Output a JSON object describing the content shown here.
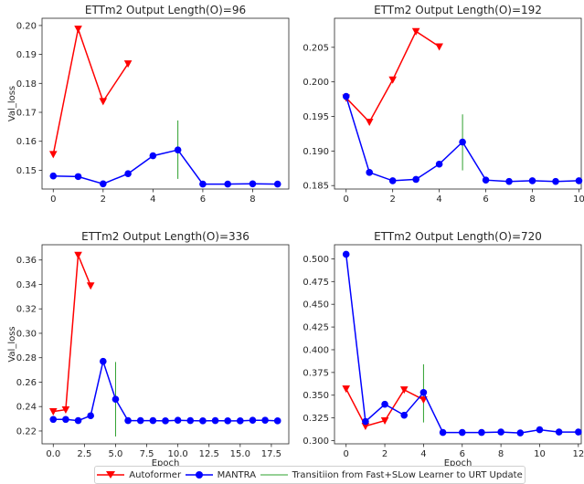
{
  "legend": {
    "autoformer": "Autoformer",
    "mantra": "MANTRA",
    "transition": "Transitiion from Fast+SLow Learner to URT Update"
  },
  "colors": {
    "autoformer": "#ff0000",
    "mantra": "#0000ff",
    "transition": "#2ca02c"
  },
  "chart_data": [
    {
      "type": "line",
      "title": "ETTm2 Output Length(O)=96",
      "xlabel": "",
      "ylabel": "Val_loss",
      "xlim": [
        -0.45,
        9.45
      ],
      "ylim": [
        0.1435,
        0.2025
      ],
      "xticks": [
        0,
        2,
        4,
        6,
        8
      ],
      "xtick_labels": [
        "0",
        "2",
        "4",
        "6",
        "8"
      ],
      "yticks": [
        0.15,
        0.16,
        0.17,
        0.18,
        0.19,
        0.2
      ],
      "ytick_labels": [
        "0.15",
        "0.16",
        "0.17",
        "0.18",
        "0.19",
        "0.20"
      ],
      "series": [
        {
          "name": "Autoformer",
          "marker": "triangle-down",
          "x": [
            0,
            1,
            2,
            3
          ],
          "y": [
            0.1555,
            0.1988,
            0.1738,
            0.1868
          ]
        },
        {
          "name": "MANTRA",
          "marker": "circle",
          "x": [
            0,
            1,
            2,
            3,
            4,
            5,
            6,
            7,
            8,
            9
          ],
          "y": [
            0.148,
            0.1478,
            0.1453,
            0.1488,
            0.155,
            0.157,
            0.1452,
            0.1452,
            0.1453,
            0.1452
          ]
        }
      ],
      "transition": {
        "x": 5,
        "y0": 0.147,
        "y1": 0.1672
      }
    },
    {
      "type": "line",
      "title": "ETTm2 Output Length(O)=192",
      "xlabel": "",
      "ylabel": "",
      "xlim": [
        -0.5,
        10.1
      ],
      "ylim": [
        0.1845,
        0.2092
      ],
      "xticks": [
        0,
        2,
        4,
        6,
        8,
        10
      ],
      "xtick_labels": [
        "0",
        "2",
        "4",
        "6",
        "8",
        "10"
      ],
      "yticks": [
        0.185,
        0.19,
        0.195,
        0.2,
        0.205
      ],
      "ytick_labels": [
        "0.185",
        "0.190",
        "0.195",
        "0.200",
        "0.205"
      ],
      "series": [
        {
          "name": "Autoformer",
          "marker": "triangle-down",
          "x": [
            0,
            1,
            2,
            3,
            4
          ],
          "y": [
            0.1977,
            0.1942,
            0.2003,
            0.2073,
            0.2051
          ]
        },
        {
          "name": "MANTRA",
          "marker": "circle",
          "x": [
            0,
            1,
            2,
            3,
            4,
            5,
            6,
            7,
            8,
            9,
            10
          ],
          "y": [
            0.1979,
            0.1869,
            0.1857,
            0.1859,
            0.1881,
            0.1913,
            0.1858,
            0.1856,
            0.1857,
            0.1856,
            0.1857
          ]
        }
      ],
      "transition": {
        "x": 5,
        "y0": 0.1872,
        "y1": 0.1953
      }
    },
    {
      "type": "line",
      "title": "ETTm2 Output Length(O)=336",
      "xlabel": "Epoch",
      "ylabel": "Val_loss",
      "xlim": [
        -0.9,
        18.9
      ],
      "ylim": [
        0.2095,
        0.3725
      ],
      "xticks": [
        0,
        2.5,
        5,
        7.5,
        10,
        12.5,
        15,
        17.5
      ],
      "xtick_labels": [
        "0.0",
        "2.5",
        "5.0",
        "7.5",
        "10.0",
        "12.5",
        "15.0",
        "17.5"
      ],
      "yticks": [
        0.22,
        0.24,
        0.26,
        0.28,
        0.3,
        0.32,
        0.34,
        0.36
      ],
      "ytick_labels": [
        "0.22",
        "0.24",
        "0.26",
        "0.28",
        "0.30",
        "0.32",
        "0.34",
        "0.36"
      ],
      "series": [
        {
          "name": "Autoformer",
          "marker": "triangle-down",
          "x": [
            0,
            1,
            2,
            3
          ],
          "y": [
            0.236,
            0.2375,
            0.364,
            0.339
          ]
        },
        {
          "name": "MANTRA",
          "marker": "circle",
          "x": [
            0,
            1,
            2,
            3,
            4,
            5,
            6,
            7,
            8,
            9,
            10,
            11,
            12,
            13,
            14,
            15,
            16,
            17,
            18
          ],
          "y": [
            0.2295,
            0.2295,
            0.2285,
            0.2325,
            0.277,
            0.246,
            0.2285,
            0.2285,
            0.2285,
            0.2283,
            0.2288,
            0.2285,
            0.2283,
            0.2285,
            0.2283,
            0.2283,
            0.2288,
            0.2288,
            0.2283
          ]
        }
      ],
      "transition": {
        "x": 5,
        "y0": 0.2155,
        "y1": 0.2765
      }
    },
    {
      "type": "line",
      "title": "ETTm2 Output Length(O)=720",
      "xlabel": "Epoch",
      "ylabel": "",
      "xlim": [
        -0.6,
        12.15
      ],
      "ylim": [
        0.2965,
        0.5155
      ],
      "xticks": [
        0,
        2,
        4,
        6,
        8,
        10,
        12
      ],
      "xtick_labels": [
        "0",
        "2",
        "4",
        "6",
        "8",
        "10",
        "12"
      ],
      "yticks": [
        0.3,
        0.325,
        0.35,
        0.375,
        0.4,
        0.425,
        0.45,
        0.475,
        0.5
      ],
      "ytick_labels": [
        "0.300",
        "0.325",
        "0.350",
        "0.375",
        "0.400",
        "0.425",
        "0.450",
        "0.475",
        "0.500"
      ],
      "series": [
        {
          "name": "Autoformer",
          "marker": "triangle-down",
          "x": [
            0,
            1,
            2,
            3,
            4
          ],
          "y": [
            0.357,
            0.316,
            0.322,
            0.356,
            0.345
          ]
        },
        {
          "name": "MANTRA",
          "marker": "circle",
          "x": [
            0,
            1,
            2,
            3,
            4,
            5,
            6,
            7,
            8,
            9,
            10,
            11,
            12
          ],
          "y": [
            0.505,
            0.321,
            0.34,
            0.328,
            0.353,
            0.309,
            0.309,
            0.309,
            0.3095,
            0.3085,
            0.312,
            0.3095,
            0.3095
          ]
        }
      ],
      "transition": {
        "x": 4,
        "y0": 0.32,
        "y1": 0.384
      }
    }
  ]
}
